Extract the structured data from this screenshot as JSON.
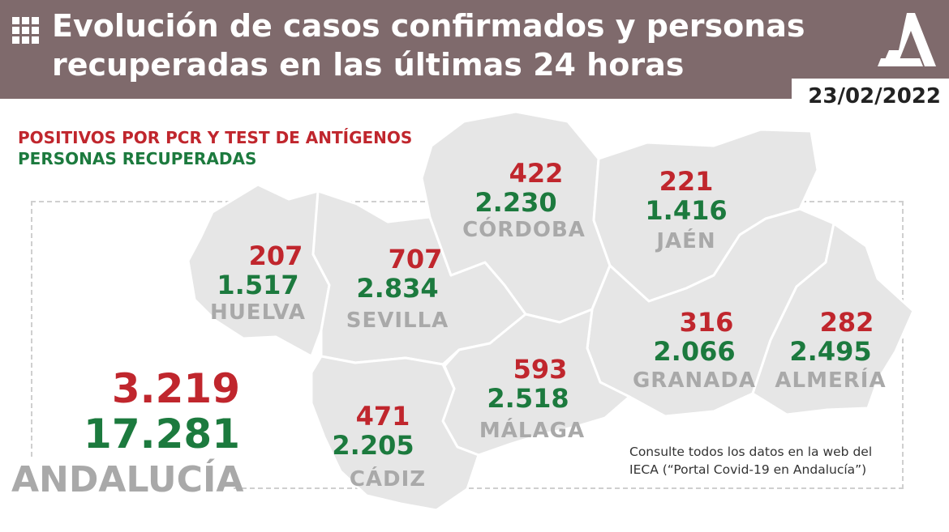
{
  "header": {
    "title_line1": "Evolución de casos confirmados y personas",
    "title_line2": "recuperadas en las últimas 24 horas",
    "date": "23/02/2022",
    "grid_icon": "grid-icon",
    "logo_icon": "junta-andalucia-logo"
  },
  "legend": {
    "positives": "POSITIVOS POR PCR Y TEST DE ANTÍGENOS",
    "recovered": "PERSONAS RECUPERADAS"
  },
  "provinces": {
    "huelva": {
      "name": "HUELVA",
      "positives": "207",
      "recovered": "1.517"
    },
    "sevilla": {
      "name": "SEVILLA",
      "positives": "707",
      "recovered": "2.834"
    },
    "cordoba": {
      "name": "CÓRDOBA",
      "positives": "422",
      "recovered": "2.230"
    },
    "jaen": {
      "name": "JAÉN",
      "positives": "221",
      "recovered": "1.416"
    },
    "granada": {
      "name": "GRANADA",
      "positives": "316",
      "recovered": "2.066"
    },
    "almeria": {
      "name": "ALMERÍA",
      "positives": "282",
      "recovered": "2.495"
    },
    "malaga": {
      "name": "MÁLAGA",
      "positives": "593",
      "recovered": "2.518"
    },
    "cadiz": {
      "name": "CÁDIZ",
      "positives": "471",
      "recovered": "2.205"
    }
  },
  "total": {
    "name": "ANDALUCÍA",
    "positives": "3.219",
    "recovered": "17.281"
  },
  "note": {
    "line1": "Consulte todos los datos en la web del",
    "line2": "IECA (“Portal Covid-19 en Andalucía”)"
  },
  "colors": {
    "header": "#7f6a6c",
    "positives": "#c0262d",
    "recovered": "#1c7a3e",
    "map_fill": "#e6e6e6",
    "province_label": "#a9a9a9"
  }
}
